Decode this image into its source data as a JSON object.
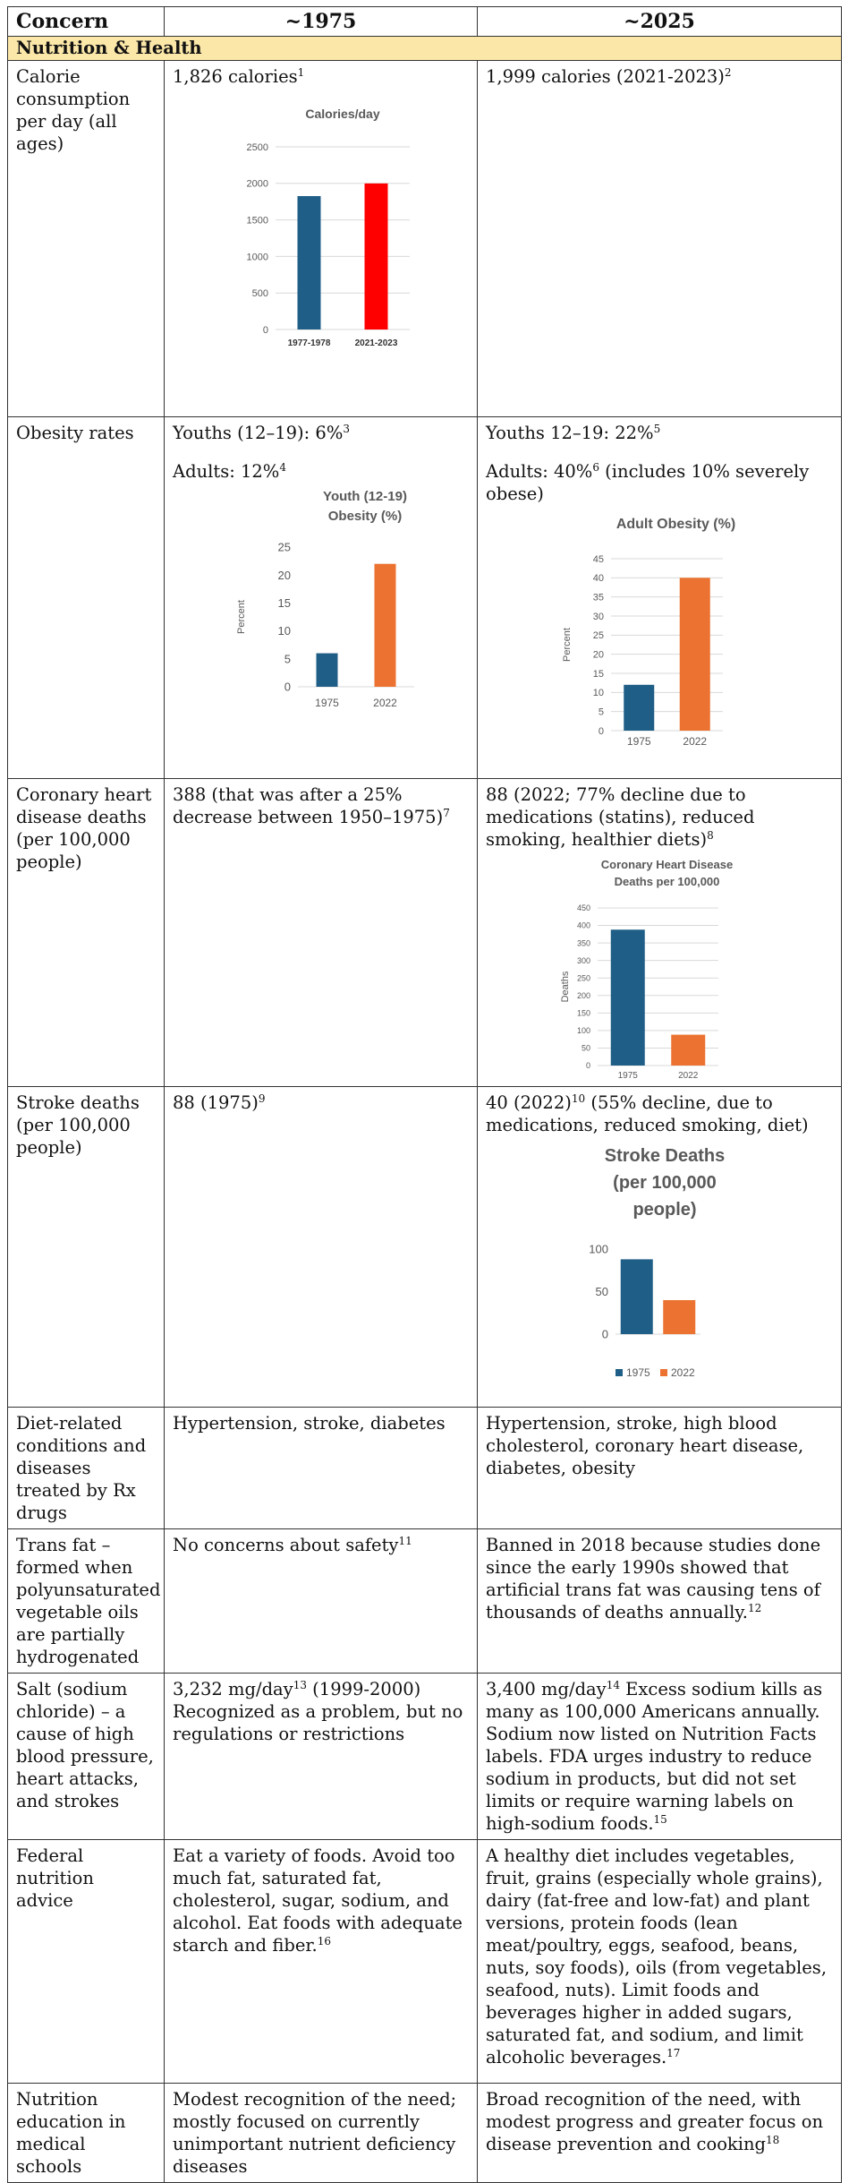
{
  "header": {
    "col0": "Concern",
    "col1": "~1975",
    "col2": "~2025"
  },
  "section": "Nutrition & Health",
  "rows": {
    "calories": {
      "concern": "Calorie consumption per day (all ages)",
      "c1_text": "1,826 calories",
      "c1_sup": "1",
      "c2_text": "1,999 calories (2021-2023)",
      "c2_sup": "2"
    },
    "obesity": {
      "concern": "Obesity rates",
      "c1_line1": "Youths (12–19): 6%",
      "c1_sup1": "3",
      "c1_line2": "Adults: 12%",
      "c1_sup2": "4",
      "c2_line1": "Youths 12–19: 22%",
      "c2_sup1": "5",
      "c2_line2a": "Adults: 40%",
      "c2_sup2": "6",
      "c2_line2b": " (includes 10% severely obese)"
    },
    "chd": {
      "concern": "Coronary heart disease deaths (per 100,000 people)",
      "c1_text": "388 (that was after a 25% decrease between 1950–1975)",
      "c1_sup": "7",
      "c2_text": "88 (2022; 77% decline due to medications (statins), reduced smoking, healthier diets)",
      "c2_sup": "8"
    },
    "stroke": {
      "concern": "Stroke deaths (per 100,000 people)",
      "c1_text": "88 (1975)",
      "c1_sup": "9",
      "c2_text_a": "40 (2022)",
      "c2_sup": "10",
      "c2_text_b": " (55% decline, due to medications, reduced smoking, diet)"
    },
    "diet": {
      "concern": "Diet-related conditions and diseases treated by Rx drugs",
      "c1_text": "Hypertension, stroke, diabetes",
      "c2_text": "Hypertension, stroke, high blood cholesterol, coronary heart disease, diabetes, obesity"
    },
    "transfat": {
      "concern": "Trans fat – formed when polyunsaturated vegetable oils are partially hydrogenated",
      "c1_text": "No concerns about safety",
      "c1_sup": "11",
      "c2_text": "Banned in 2018 because studies done since the early 1990s showed that artificial trans fat was causing tens of thousands of deaths annually.",
      "c2_sup": "12"
    },
    "salt": {
      "concern": "Salt (sodium chloride) – a cause of high blood pressure, heart attacks, and strokes",
      "c1_text_a": "3,232 mg/day",
      "c1_sup": "13",
      "c1_text_b": " (1999-2000) Recognized as a problem, but no regulations or restrictions",
      "c2_text_a": "3,400 mg/day",
      "c2_sup1": "14",
      "c2_text_b": " Excess sodium kills as many as 100,000 Americans annually. Sodium now listed on Nutrition Facts labels. FDA urges industry to reduce sodium in products, but did not set limits or require warning labels on high-sodium foods.",
      "c2_sup2": "15"
    },
    "advice": {
      "concern": "Federal nutrition advice",
      "c1_text": "Eat a variety of foods. Avoid too much fat, saturated fat, cholesterol, sugar, sodium, and alcohol. Eat foods with adequate starch and fiber.",
      "c1_sup": "16",
      "c2_text": "A healthy diet includes vegetables, fruit, grains (especially whole grains), dairy (fat-free and low-fat) and plant versions, protein foods (lean meat/poultry, eggs, seafood, beans, nuts, soy foods), oils (from vegetables, seafood, nuts). Limit foods and beverages higher in added sugars, saturated fat, and sodium, and limit alcoholic beverages.",
      "c2_sup": "17"
    },
    "education": {
      "concern": "Nutrition education in medical schools",
      "c1_text": "Modest recognition of the need; mostly focused on currently unimportant nutrient deficiency diseases",
      "c2_text": "Broad recognition of the need, with modest progress and greater focus on disease prevention and cooking",
      "c2_sup": "18"
    }
  },
  "colors": {
    "blue": "#1f5e86",
    "red": "#ff0000",
    "orange": "#ec7231",
    "axis_text": "#595959",
    "grid": "#d9d9d9"
  },
  "chart_data": [
    {
      "id": "calories",
      "type": "bar",
      "title": "Calories/day",
      "categories": [
        "1977-1978",
        "2021-2023"
      ],
      "values": [
        1826,
        1999
      ],
      "colors": [
        "#1f5e86",
        "#ff0000"
      ],
      "ylim": [
        0,
        2500
      ],
      "yticks": [
        0,
        500,
        1000,
        1500,
        2000,
        2500
      ],
      "xlabel": "",
      "ylabel": "",
      "grid": true
    },
    {
      "id": "youth",
      "type": "bar",
      "title": "Youth (12-19) Obesity (%)",
      "categories": [
        "1975",
        "2022"
      ],
      "values": [
        6,
        22
      ],
      "colors": [
        "#1f5e86",
        "#ec7231"
      ],
      "ylim": [
        0,
        25
      ],
      "yticks": [
        0,
        5,
        10,
        15,
        20,
        25
      ],
      "ylabel": "Percent",
      "grid": false
    },
    {
      "id": "adult",
      "type": "bar",
      "title": "Adult Obesity (%)",
      "categories": [
        "1975",
        "2022"
      ],
      "values": [
        12,
        40
      ],
      "colors": [
        "#1f5e86",
        "#ec7231"
      ],
      "ylim": [
        0,
        45
      ],
      "yticks": [
        0,
        5,
        10,
        15,
        20,
        25,
        30,
        35,
        40,
        45
      ],
      "ylabel": "Percent",
      "grid": true
    },
    {
      "id": "chd",
      "type": "bar",
      "title": "Coronary Heart Disease Deaths per 100,000",
      "categories": [
        "1975",
        "2022"
      ],
      "values": [
        388,
        88
      ],
      "colors": [
        "#1f5e86",
        "#ec7231"
      ],
      "ylim": [
        0,
        450
      ],
      "yticks": [
        0,
        50,
        100,
        150,
        200,
        250,
        300,
        350,
        400,
        450
      ],
      "ylabel": "Deaths",
      "grid": true
    },
    {
      "id": "stroke",
      "type": "bar",
      "title": "Stroke Deaths (per 100,000 people)",
      "categories": [
        "1975",
        "2022"
      ],
      "values": [
        88,
        40
      ],
      "colors": [
        "#1f5e86",
        "#ec7231"
      ],
      "ylim": [
        0,
        100
      ],
      "yticks": [
        0,
        50,
        100
      ],
      "legend": [
        "1975",
        "2022"
      ],
      "legend_position": "bottom",
      "grid": false
    }
  ]
}
